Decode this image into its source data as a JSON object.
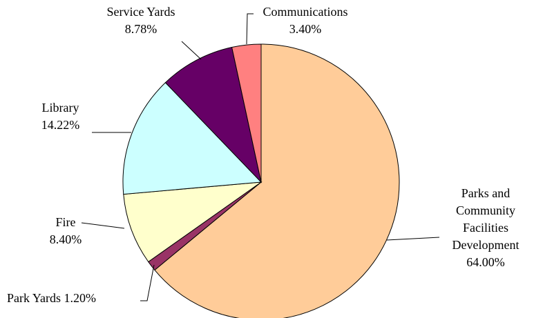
{
  "chart_data": {
    "type": "pie",
    "categories": [
      "Parks and Community Facilities Development",
      "Park Yards",
      "Fire",
      "Library",
      "Service Yards",
      "Communications"
    ],
    "values": [
      64.0,
      1.2,
      8.4,
      14.22,
      8.78,
      3.4
    ],
    "value_labels": [
      "64.00%",
      "1.20%",
      "8.40%",
      "14.22%",
      "8.78%",
      "3.40%"
    ],
    "colors": [
      "#FFCC99",
      "#993366",
      "#FFFFCC",
      "#CCFFFF",
      "#660066",
      "#FF8080"
    ]
  }
}
